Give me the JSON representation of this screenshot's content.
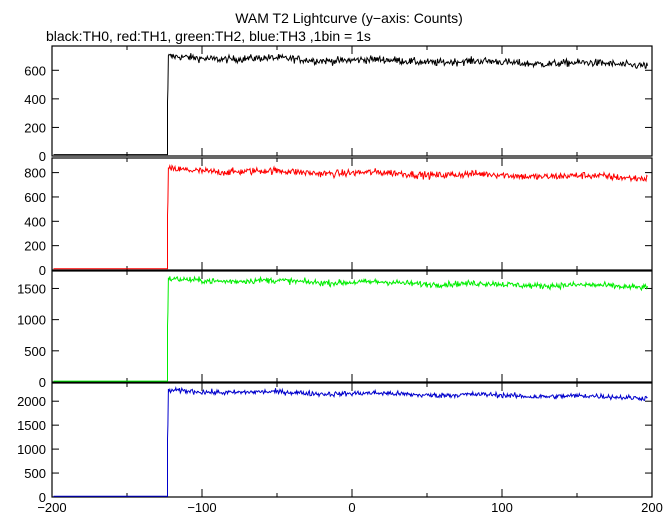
{
  "chart_data": {
    "type": "line",
    "title": "WAM T2 Lightcurve (y−axis: Counts)",
    "subtitle": "black:TH0, red:TH1, green:TH2, blue:TH3 ,1bin = 1s",
    "xlabel": "",
    "xlim": [
      -200,
      200
    ],
    "x_ticks": [
      -200,
      -100,
      0,
      100,
      200
    ],
    "x_tick_labels": [
      "−200",
      "−100",
      "0",
      "100",
      "200"
    ],
    "grid": false,
    "trigger_time": -123,
    "panels": [
      {
        "series": "TH0",
        "color": "#000000",
        "ylim": [
          0,
          770
        ],
        "y_ticks": [
          0,
          200,
          400,
          600
        ],
        "pre_level": 10,
        "post_start": 690,
        "post_end": 640,
        "noise": 22
      },
      {
        "series": "TH1",
        "color": "#ff0000",
        "ylim": [
          0,
          920
        ],
        "y_ticks": [
          0,
          200,
          400,
          600,
          800
        ],
        "pre_level": 10,
        "post_start": 820,
        "post_end": 760,
        "noise": 25
      },
      {
        "series": "TH2",
        "color": "#00ee00",
        "ylim": [
          0,
          1780
        ],
        "y_ticks": [
          0,
          500,
          1000,
          1500
        ],
        "pre_level": 15,
        "post_start": 1640,
        "post_end": 1530,
        "noise": 40
      },
      {
        "series": "TH3",
        "color": "#0000cc",
        "ylim": [
          0,
          2380
        ],
        "y_ticks": [
          0,
          500,
          1000,
          1500,
          2000
        ],
        "pre_level": 15,
        "post_start": 2210,
        "post_end": 2080,
        "noise": 45
      }
    ]
  }
}
